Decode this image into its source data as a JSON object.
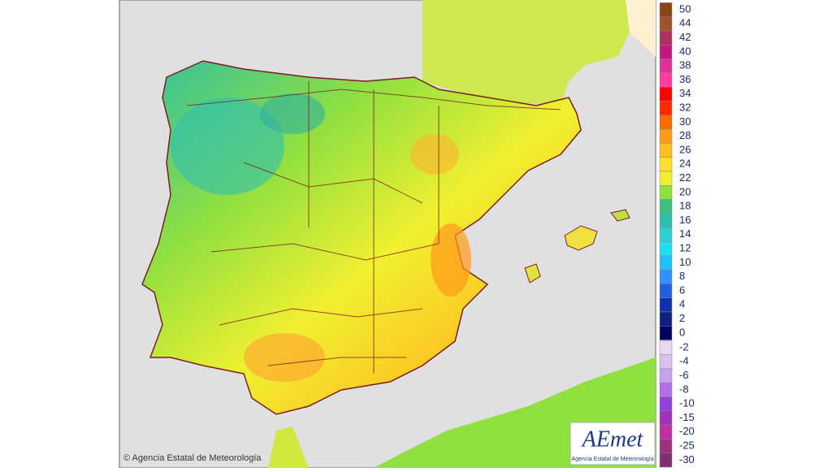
{
  "copyright": "© Agencia Estatal de Meteorología",
  "logo": {
    "name": "AEmet",
    "subtitle": "Agencia Estatal de Meteorología"
  },
  "legend": {
    "entries": [
      {
        "value": 50,
        "color": "#8b4513"
      },
      {
        "value": 44,
        "color": "#a0522d"
      },
      {
        "value": 42,
        "color": "#b03060"
      },
      {
        "value": 40,
        "color": "#c71585"
      },
      {
        "value": 38,
        "color": "#e0309a"
      },
      {
        "value": 36,
        "color": "#ff3ca0"
      },
      {
        "value": 34,
        "color": "#ff0000"
      },
      {
        "value": 32,
        "color": "#ff2a00"
      },
      {
        "value": 30,
        "color": "#ff6a00"
      },
      {
        "value": 28,
        "color": "#ff9a1a"
      },
      {
        "value": 26,
        "color": "#ffc020"
      },
      {
        "value": 24,
        "color": "#ffe030"
      },
      {
        "value": 22,
        "color": "#f0f030"
      },
      {
        "value": 20,
        "color": "#90e040"
      },
      {
        "value": 18,
        "color": "#40c080"
      },
      {
        "value": 16,
        "color": "#30c0b0"
      },
      {
        "value": 14,
        "color": "#30d0d0"
      },
      {
        "value": 12,
        "color": "#20e0f0"
      },
      {
        "value": 10,
        "color": "#20c0ff"
      },
      {
        "value": 8,
        "color": "#3090ff"
      },
      {
        "value": 6,
        "color": "#2060e0"
      },
      {
        "value": 4,
        "color": "#1030b0"
      },
      {
        "value": 2,
        "color": "#102080"
      },
      {
        "value": 0,
        "color": "#000060"
      },
      {
        "value": -2,
        "color": "#e8d8f0"
      },
      {
        "value": -4,
        "color": "#d8c0f0"
      },
      {
        "value": -6,
        "color": "#c8a0f0"
      },
      {
        "value": -8,
        "color": "#b070e8"
      },
      {
        "value": -10,
        "color": "#9040e0"
      },
      {
        "value": -15,
        "color": "#a030c0"
      },
      {
        "value": -20,
        "color": "#c030a0"
      },
      {
        "value": -25,
        "color": "#a03080"
      },
      {
        "value": -30,
        "color": "#803070"
      }
    ]
  }
}
